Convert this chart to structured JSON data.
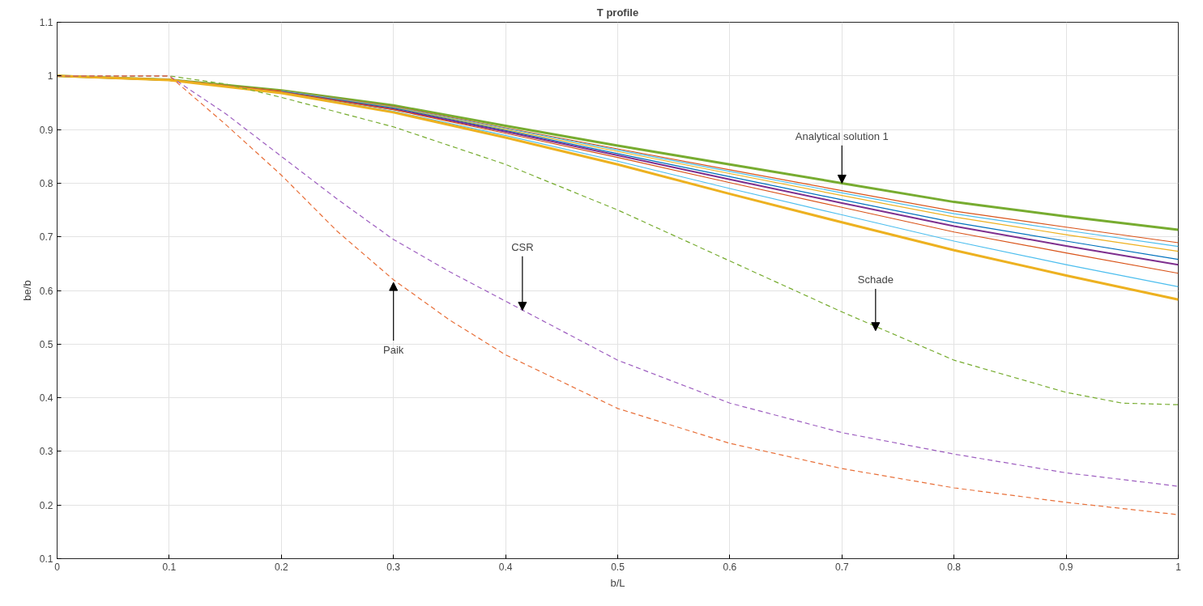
{
  "chart_data": {
    "type": "line",
    "title": "T profile",
    "xlabel": "b/L",
    "ylabel": "be/b",
    "xlim": [
      0,
      1
    ],
    "ylim": [
      0.1,
      1.1
    ],
    "xticks": [
      0,
      0.1,
      0.2,
      0.3,
      0.4,
      0.5,
      0.6,
      0.7,
      0.8,
      0.9,
      1
    ],
    "yticks": [
      0.1,
      0.2,
      0.3,
      0.4,
      0.5,
      0.6,
      0.7,
      0.8,
      0.9,
      1,
      1.1
    ],
    "grid": true,
    "marker": "none",
    "x": [
      0,
      0.1,
      0.2,
      0.3,
      0.4,
      0.5,
      0.6,
      0.7,
      0.8,
      0.9,
      1
    ],
    "series": [
      {
        "color": "#77ac30",
        "line_style": "solid",
        "values": [
          1,
          0.993,
          0.973,
          0.945,
          0.907,
          0.87,
          0.835,
          0.8,
          0.765,
          0.738,
          0.713
        ]
      },
      {
        "color": "#d95319",
        "line_style": "solid",
        "values": [
          1,
          0.993,
          0.972,
          0.943,
          0.903,
          0.864,
          0.825,
          0.786,
          0.748,
          0.718,
          0.689
        ]
      },
      {
        "color": "#4dbeee",
        "line_style": "solid",
        "values": [
          null,
          null,
          0.972,
          0.942,
          0.902,
          0.862,
          0.822,
          0.782,
          0.743,
          0.712,
          0.682
        ]
      },
      {
        "color": "#edb120",
        "line_style": "solid",
        "values": [
          1,
          0.993,
          0.971,
          0.941,
          0.9,
          0.859,
          0.818,
          0.777,
          0.737,
          0.704,
          0.673
        ]
      },
      {
        "color": "#0072bd",
        "line_style": "solid",
        "values": [
          null,
          null,
          0.971,
          0.94,
          0.898,
          0.855,
          0.812,
          0.769,
          0.727,
          0.692,
          0.658
        ]
      },
      {
        "color": "#7e2f8e",
        "line_style": "solid",
        "values": [
          1,
          0.992,
          0.97,
          0.938,
          0.896,
          0.852,
          0.807,
          0.763,
          0.72,
          0.683,
          0.648
        ]
      },
      {
        "color": "#d95319",
        "line_style": "solid",
        "values": [
          1,
          0.992,
          0.97,
          0.937,
          0.893,
          0.848,
          0.801,
          0.755,
          0.709,
          0.67,
          0.632
        ]
      },
      {
        "color": "#4dbeee",
        "line_style": "solid",
        "values": [
          null,
          null,
          0.969,
          0.934,
          0.889,
          0.841,
          0.79,
          0.741,
          0.692,
          0.648,
          0.607
        ]
      },
      {
        "color": "#edb120",
        "line_style": "solid",
        "values": [
          1,
          0.992,
          0.968,
          0.932,
          0.885,
          0.835,
          0.78,
          0.727,
          0.675,
          0.628,
          0.583
        ]
      },
      {
        "color": "#77ac30",
        "line_style": "dashed",
        "x": [
          0,
          0.1,
          0.15,
          0.2,
          0.3,
          0.4,
          0.5,
          0.6,
          0.7,
          0.8,
          0.9,
          0.95,
          1
        ],
        "values": [
          1,
          1,
          0.985,
          0.96,
          0.905,
          0.835,
          0.75,
          0.655,
          0.56,
          0.47,
          0.41,
          0.39,
          0.387
        ]
      },
      {
        "color": "#9e5fc0",
        "line_style": "dashed",
        "x": [
          0,
          0.1,
          0.15,
          0.2,
          0.25,
          0.3,
          0.35,
          0.4,
          0.5,
          0.6,
          0.7,
          0.8,
          0.9,
          1
        ],
        "values": [
          1,
          1,
          0.93,
          0.85,
          0.77,
          0.695,
          0.635,
          0.58,
          0.47,
          0.39,
          0.335,
          0.295,
          0.26,
          0.235
        ]
      },
      {
        "color": "#e8703a",
        "line_style": "dashed",
        "x": [
          0,
          0.1,
          0.15,
          0.2,
          0.25,
          0.3,
          0.35,
          0.4,
          0.5,
          0.6,
          0.7,
          0.8,
          0.9,
          1
        ],
        "values": [
          1,
          1,
          0.91,
          0.815,
          0.71,
          0.62,
          0.545,
          0.48,
          0.38,
          0.315,
          0.268,
          0.232,
          0.205,
          0.182
        ]
      }
    ],
    "annotations": [
      {
        "text": "Analytical solution 1",
        "x": 0.7,
        "y": 0.8
      },
      {
        "text": "CSR",
        "x": 0.415,
        "y": 0.563
      },
      {
        "text": "Schade",
        "x": 0.73,
        "y": 0.525
      },
      {
        "text": "Paik",
        "x": 0.3,
        "y": 0.615
      }
    ]
  }
}
